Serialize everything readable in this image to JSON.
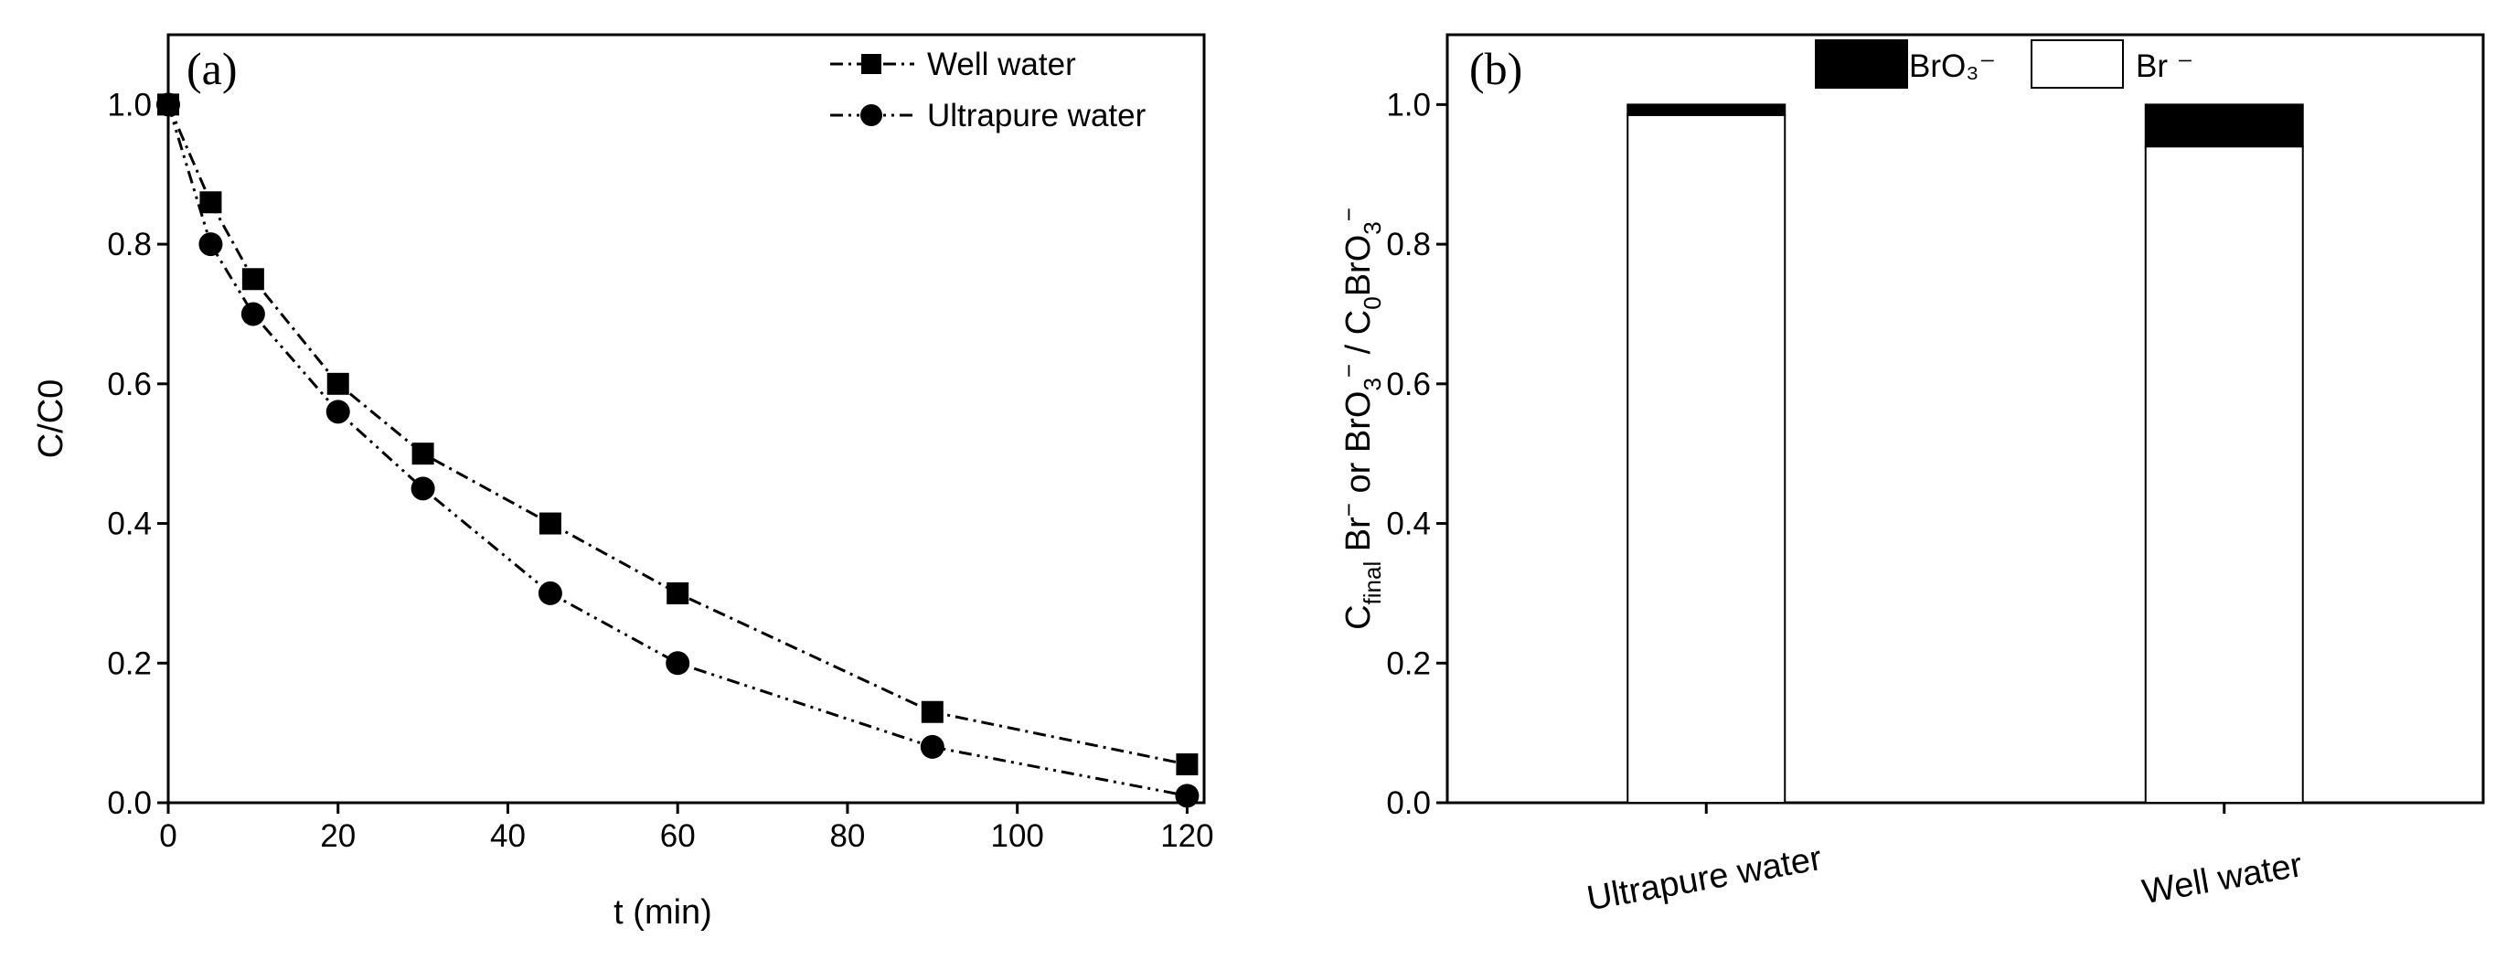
{
  "chart_data": [
    {
      "id": "a",
      "type": "line",
      "panel_label": "(a)",
      "xlabel": "t (min)",
      "ylabel": "C/C0",
      "xlim": [
        0,
        122
      ],
      "ylim": [
        0,
        1.1
      ],
      "x_ticks": [
        "0",
        "20",
        "40",
        "60",
        "80",
        "100",
        "120"
      ],
      "y_ticks": [
        "0.0",
        "0.2",
        "0.4",
        "0.6",
        "0.8",
        "1.0"
      ],
      "legend_position": "top-right",
      "series": [
        {
          "name": "Well water",
          "marker": "square",
          "x": [
            0,
            5,
            10,
            20,
            30,
            45,
            60,
            90,
            120
          ],
          "values": [
            1.0,
            0.86,
            0.75,
            0.6,
            0.5,
            0.4,
            0.3,
            0.13,
            0.055
          ]
        },
        {
          "name": "Ultrapure water",
          "marker": "circle",
          "x": [
            0,
            5,
            10,
            20,
            30,
            45,
            60,
            90,
            120
          ],
          "values": [
            1.0,
            0.8,
            0.7,
            0.56,
            0.45,
            0.3,
            0.2,
            0.08,
            0.01
          ]
        }
      ]
    },
    {
      "id": "b",
      "type": "bar",
      "stacked": true,
      "panel_label": "(b)",
      "categories": [
        "Ultrapure water",
        "Well water"
      ],
      "ylim": [
        0,
        1.1
      ],
      "y_ticks": [
        "0.0",
        "0.2",
        "0.4",
        "0.6",
        "0.8",
        "1.0"
      ],
      "ylabel": {
        "c": "C",
        "final": "final",
        "br": " Br",
        "minus1": "−",
        "or": " or BrO",
        "sub3a": "3",
        "minus2": "−",
        "slash": " / C",
        "sub0": "0",
        "bro": "BrO",
        "sub3b": "3",
        "minus3": "−"
      },
      "legend_position": "top",
      "legend": [
        {
          "name": "BrO₃⁻",
          "color": "#000000"
        },
        {
          "name": "Br ⁻",
          "color": "#ffffff"
        }
      ],
      "series": [
        {
          "name": "Br ⁻",
          "color": "#ffffff",
          "values": [
            0.985,
            0.94
          ]
        },
        {
          "name": "BrO₃⁻",
          "color": "#000000",
          "values": [
            0.015,
            0.06
          ]
        }
      ]
    }
  ]
}
